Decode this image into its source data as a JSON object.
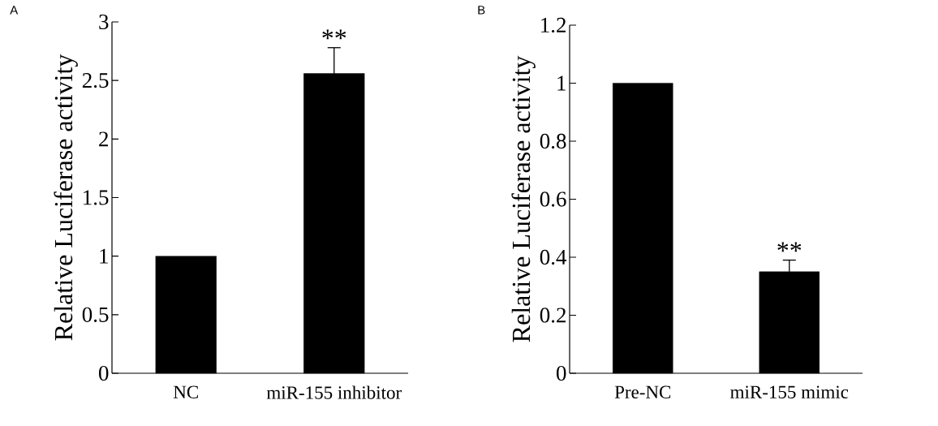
{
  "chart_data": [
    {
      "type": "bar",
      "ylabel": "Relative Luciferase activity",
      "categories": [
        "NC",
        "miR-155 inhibitor"
      ],
      "values": [
        1.0,
        2.56
      ],
      "errors": [
        null,
        0.22
      ],
      "color": "#000000",
      "ylim": [
        0,
        3
      ],
      "yticks": [
        0,
        0.5,
        1,
        1.5,
        2,
        2.5,
        3
      ],
      "grid": false,
      "annotations": [
        "A",
        {
          "text": "**",
          "x": "miR-155 inhibitor",
          "y": 2.78
        }
      ]
    },
    {
      "type": "bar",
      "ylabel": "Relative Luciferase activity",
      "categories": [
        "Pre-NC",
        "miR-155 mimic"
      ],
      "values": [
        1.0,
        0.35
      ],
      "errors": [
        null,
        0.04
      ],
      "color": "#000000",
      "ylim": [
        0,
        1.2
      ],
      "yticks": [
        0,
        0.2,
        0.4,
        0.6,
        0.8,
        1,
        1.2
      ],
      "grid": false,
      "annotations": [
        "B",
        {
          "text": "**",
          "x": "miR-155 mimic",
          "y": 0.39
        }
      ]
    }
  ]
}
